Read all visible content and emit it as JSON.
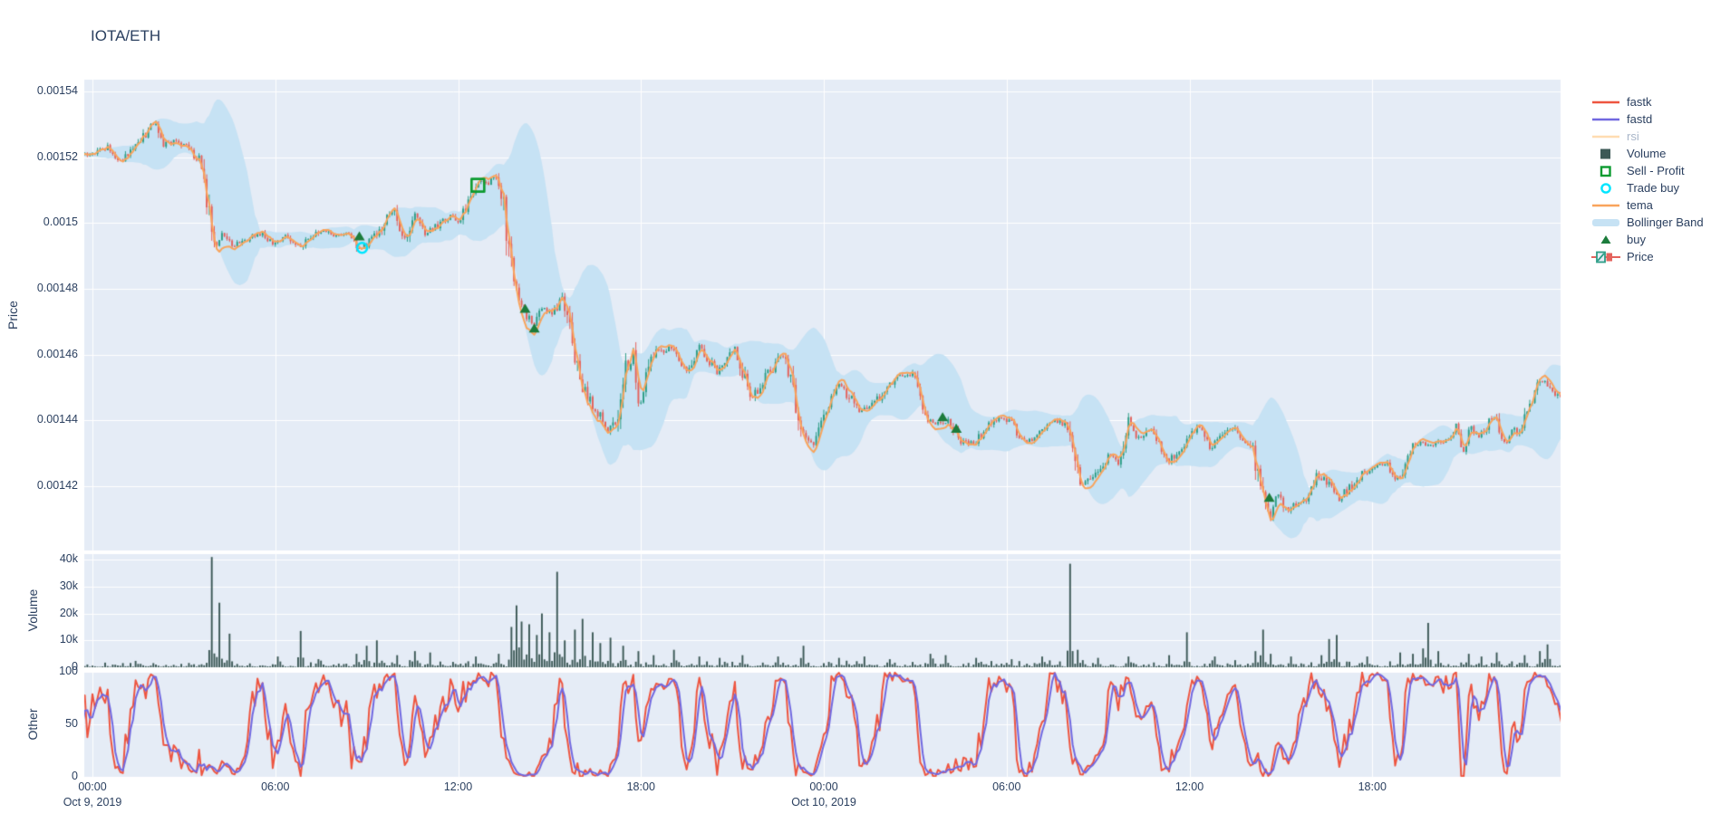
{
  "title": "IOTA/ETH",
  "colors": {
    "text": "#2a3f5f",
    "plot_bg": "#e5ecf6",
    "grid": "#ffffff",
    "candle_up": "#2d9e87",
    "candle_down": "#e4625c",
    "tema": "#f9a45c",
    "bollinger": "#c6e2f4",
    "volume_bar": "#3c5956",
    "fastk": "#ee5540",
    "fastd": "#7168e0",
    "rsi_muted": "#ffdcb2",
    "buy": "#1c7c3c",
    "sell_profit": "#0c9b30",
    "trade_buy": "#00e5ff"
  },
  "legend": {
    "items": [
      {
        "id": "fastk",
        "label": "fastk",
        "type": "line",
        "color": "#ee5540",
        "muted": false
      },
      {
        "id": "fastd",
        "label": "fastd",
        "type": "line",
        "color": "#7168e0",
        "muted": false
      },
      {
        "id": "rsi",
        "label": "rsi",
        "type": "line",
        "color": "#ffdcb2",
        "muted": true
      },
      {
        "id": "volume",
        "label": "Volume",
        "type": "square",
        "color": "#3c5956",
        "muted": false
      },
      {
        "id": "sell-profit",
        "label": "Sell - Profit",
        "type": "open-square",
        "color": "#0c9b30",
        "muted": false
      },
      {
        "id": "trade-buy",
        "label": "Trade buy",
        "type": "open-circle",
        "color": "#00e5ff",
        "muted": false
      },
      {
        "id": "tema",
        "label": "tema",
        "type": "line",
        "color": "#f9a45c",
        "muted": false
      },
      {
        "id": "bollinger-band",
        "label": "Bollinger Band",
        "type": "band",
        "color": "#c6e2f4",
        "muted": false
      },
      {
        "id": "buy",
        "label": "buy",
        "type": "triangle",
        "color": "#1c7c3c",
        "muted": false
      },
      {
        "id": "price",
        "label": "Price",
        "type": "candle",
        "color": "#2d9e87",
        "color2": "#e4625c",
        "muted": false
      }
    ]
  },
  "axes": {
    "price": {
      "title": "Price",
      "ticks": [
        {
          "v": 0.00154,
          "label": "0.00154"
        },
        {
          "v": 0.00152,
          "label": "0.00152"
        },
        {
          "v": 0.0015,
          "label": "0.0015"
        },
        {
          "v": 0.00148,
          "label": "0.00148"
        },
        {
          "v": 0.00146,
          "label": "0.00146"
        },
        {
          "v": 0.00144,
          "label": "0.00144"
        },
        {
          "v": 0.00142,
          "label": "0.00142"
        }
      ],
      "range": [
        0.0014005,
        0.0015436
      ]
    },
    "volume": {
      "title": "Volume",
      "ticks": [
        {
          "v": 0,
          "label": "0"
        },
        {
          "v": 10000,
          "label": "10k"
        },
        {
          "v": 20000,
          "label": "20k"
        },
        {
          "v": 30000,
          "label": "30k"
        },
        {
          "v": 40000,
          "label": "40k"
        }
      ],
      "range": [
        0,
        42750
      ]
    },
    "other": {
      "title": "Other",
      "ticks": [
        {
          "v": 0,
          "label": "0"
        },
        {
          "v": 50,
          "label": "50"
        },
        {
          "v": 100,
          "label": "100"
        }
      ],
      "range": [
        0,
        100
      ]
    },
    "x": {
      "ticks": [
        {
          "t": 0,
          "label": "00:00",
          "date": "Oct 9, 2019"
        },
        {
          "t": 6,
          "label": "06:00"
        },
        {
          "t": 12,
          "label": "12:00"
        },
        {
          "t": 18,
          "label": "18:00"
        },
        {
          "t": 24,
          "label": "00:00",
          "date": "Oct 10, 2019"
        },
        {
          "t": 30,
          "label": "06:00"
        },
        {
          "t": 36,
          "label": "12:00"
        },
        {
          "t": 42,
          "label": "18:00"
        }
      ],
      "range_hours": [
        0,
        48.25
      ]
    }
  },
  "chart_data": {
    "type": "candlestick-multi-panel",
    "title": "IOTA/ETH",
    "pair": "IOTA/ETH",
    "panels": [
      "Price",
      "Volume",
      "Other"
    ],
    "series": [
      "fastk",
      "fastd",
      "rsi(hidden)",
      "Volume",
      "Sell - Profit",
      "Trade buy",
      "tema",
      "Bollinger Band",
      "buy",
      "Price"
    ],
    "candle_interval_minutes": 5,
    "gen": {
      "t_start": -2,
      "t_end": 48.25,
      "noise_seed": 11
    },
    "price_waypoints": [
      [
        0,
        0.001521
      ],
      [
        0.5,
        0.001523
      ],
      [
        0.9,
        0.0015185
      ],
      [
        1.3,
        0.0015225
      ],
      [
        1.7,
        0.0015265
      ],
      [
        2.05,
        0.001531
      ],
      [
        2.35,
        0.001524
      ],
      [
        2.8,
        0.001525
      ],
      [
        3.2,
        0.001522
      ],
      [
        3.6,
        0.001518
      ],
      [
        3.85,
        0.001503
      ],
      [
        4.05,
        0.001494
      ],
      [
        4.3,
        0.001497
      ],
      [
        4.6,
        0.001493
      ],
      [
        5.0,
        0.001495
      ],
      [
        5.5,
        0.0014968
      ],
      [
        5.9,
        0.001494
      ],
      [
        6.3,
        0.001496
      ],
      [
        6.8,
        0.001493
      ],
      [
        7.2,
        0.0014965
      ],
      [
        7.6,
        0.001498
      ],
      [
        8.0,
        0.001496
      ],
      [
        8.4,
        0.0014968
      ],
      [
        8.8,
        0.001492
      ],
      [
        9.2,
        0.001495
      ],
      [
        9.6,
        0.0015
      ],
      [
        9.9,
        0.0015055
      ],
      [
        10.2,
        0.001494
      ],
      [
        10.6,
        0.001504
      ],
      [
        10.9,
        0.001497
      ],
      [
        11.3,
        0.001499
      ],
      [
        11.8,
        0.001503
      ],
      [
        12.05,
        0.0015
      ],
      [
        12.4,
        0.001508
      ],
      [
        12.7,
        0.001512
      ],
      [
        13.0,
        0.001512
      ],
      [
        13.2,
        0.001514
      ],
      [
        13.45,
        0.001509
      ],
      [
        13.7,
        0.001488
      ],
      [
        13.95,
        0.001479
      ],
      [
        14.2,
        0.001472
      ],
      [
        14.5,
        0.001469
      ],
      [
        14.8,
        0.001475
      ],
      [
        15.1,
        0.001472
      ],
      [
        15.4,
        0.001478
      ],
      [
        15.7,
        0.001466
      ],
      [
        16.0,
        0.001453
      ],
      [
        16.3,
        0.001446
      ],
      [
        16.6,
        0.001442
      ],
      [
        16.9,
        0.0014365
      ],
      [
        17.2,
        0.001441
      ],
      [
        17.5,
        0.001456
      ],
      [
        17.75,
        0.001459
      ],
      [
        17.95,
        0.0014445
      ],
      [
        18.4,
        0.00146
      ],
      [
        19.0,
        0.0014625
      ],
      [
        19.5,
        0.001455
      ],
      [
        19.9,
        0.0014625
      ],
      [
        20.5,
        0.0014545
      ],
      [
        21.1,
        0.001462
      ],
      [
        21.6,
        0.0014455
      ],
      [
        22.0,
        0.001452
      ],
      [
        22.7,
        0.0014605
      ],
      [
        23.0,
        0.001449
      ],
      [
        23.35,
        0.0014345
      ],
      [
        23.7,
        0.001433
      ],
      [
        24.1,
        0.0014445
      ],
      [
        24.5,
        0.001451
      ],
      [
        25.2,
        0.001443
      ],
      [
        26.0,
        0.001448
      ],
      [
        26.4,
        0.0014535
      ],
      [
        27.0,
        0.0014535
      ],
      [
        27.35,
        0.001441
      ],
      [
        27.7,
        0.001439
      ],
      [
        28.1,
        0.00144
      ],
      [
        28.5,
        0.001434
      ],
      [
        28.9,
        0.001433
      ],
      [
        29.3,
        0.001437
      ],
      [
        29.7,
        0.001441
      ],
      [
        30.1,
        0.00144
      ],
      [
        30.5,
        0.001434
      ],
      [
        30.9,
        0.001434
      ],
      [
        31.3,
        0.001439
      ],
      [
        31.7,
        0.00144
      ],
      [
        32.0,
        0.001438
      ],
      [
        32.25,
        0.001426
      ],
      [
        32.45,
        0.00142
      ],
      [
        32.8,
        0.001423
      ],
      [
        33.1,
        0.0014255
      ],
      [
        33.4,
        0.00143
      ],
      [
        33.7,
        0.001426
      ],
      [
        34.0,
        0.00144
      ],
      [
        34.35,
        0.001434
      ],
      [
        34.8,
        0.0014375
      ],
      [
        35.3,
        0.0014272
      ],
      [
        35.8,
        0.001433
      ],
      [
        36.25,
        0.001438
      ],
      [
        36.7,
        0.0014315
      ],
      [
        37.1,
        0.001436
      ],
      [
        37.4,
        0.001438
      ],
      [
        37.65,
        0.001435
      ],
      [
        38.05,
        0.001433
      ],
      [
        38.45,
        0.0014145
      ],
      [
        38.65,
        0.0014105
      ],
      [
        38.9,
        0.001418
      ],
      [
        39.2,
        0.0014125
      ],
      [
        39.6,
        0.0014155
      ],
      [
        39.9,
        0.0014155
      ],
      [
        40.2,
        0.0014235
      ],
      [
        40.5,
        0.0014212
      ],
      [
        40.9,
        0.001416
      ],
      [
        41.3,
        0.00142
      ],
      [
        41.7,
        0.001424
      ],
      [
        42.1,
        0.0014265
      ],
      [
        42.5,
        0.0014265
      ],
      [
        42.9,
        0.0014215
      ],
      [
        43.3,
        0.001433
      ],
      [
        43.6,
        0.001433
      ],
      [
        44.0,
        0.001433
      ],
      [
        44.4,
        0.001434
      ],
      [
        44.75,
        0.001438
      ],
      [
        45.0,
        0.0014305
      ],
      [
        45.25,
        0.001438
      ],
      [
        45.5,
        0.0014345
      ],
      [
        46.0,
        0.0014415
      ],
      [
        46.4,
        0.0014325
      ],
      [
        46.6,
        0.0014375
      ],
      [
        46.75,
        0.001436
      ],
      [
        47.1,
        0.001444
      ],
      [
        47.4,
        0.00145
      ],
      [
        47.65,
        0.0014525
      ],
      [
        47.9,
        0.001449
      ],
      [
        48.25,
        0.001447
      ]
    ],
    "volume_spikes": [
      [
        3.9,
        41000
      ],
      [
        4.2,
        24000
      ],
      [
        4.5,
        12500
      ],
      [
        6.1,
        4000
      ],
      [
        6.8,
        13500
      ],
      [
        7.4,
        3000
      ],
      [
        8.7,
        5000
      ],
      [
        9.0,
        8000
      ],
      [
        9.35,
        10000
      ],
      [
        10.0,
        4500
      ],
      [
        10.6,
        6000
      ],
      [
        11.1,
        5500
      ],
      [
        12.6,
        4000
      ],
      [
        13.3,
        5000
      ],
      [
        13.75,
        15000
      ],
      [
        13.95,
        23000
      ],
      [
        14.1,
        17000
      ],
      [
        14.3,
        16000
      ],
      [
        14.55,
        12000
      ],
      [
        14.75,
        20000
      ],
      [
        15.0,
        13000
      ],
      [
        15.25,
        35500
      ],
      [
        15.5,
        10000
      ],
      [
        15.8,
        14000
      ],
      [
        16.05,
        18000
      ],
      [
        16.4,
        13000
      ],
      [
        16.7,
        9000
      ],
      [
        17.0,
        11000
      ],
      [
        17.4,
        8000
      ],
      [
        17.9,
        6000
      ],
      [
        18.4,
        4500
      ],
      [
        19.1,
        6500
      ],
      [
        19.9,
        4000
      ],
      [
        20.6,
        3500
      ],
      [
        21.3,
        4500
      ],
      [
        22.5,
        4000
      ],
      [
        23.3,
        8000
      ],
      [
        24.5,
        3500
      ],
      [
        25.3,
        4000
      ],
      [
        26.2,
        3000
      ],
      [
        27.5,
        5000
      ],
      [
        28.0,
        4500
      ],
      [
        29.0,
        3500
      ],
      [
        30.2,
        3000
      ],
      [
        31.2,
        4000
      ],
      [
        32.1,
        38500
      ],
      [
        32.35,
        6500
      ],
      [
        33.0,
        3500
      ],
      [
        34.0,
        4000
      ],
      [
        35.3,
        4500
      ],
      [
        35.9,
        13000
      ],
      [
        36.8,
        4000
      ],
      [
        38.2,
        6000
      ],
      [
        38.45,
        14000
      ],
      [
        38.7,
        5000
      ],
      [
        39.3,
        4000
      ],
      [
        40.3,
        4500
      ],
      [
        40.6,
        10500
      ],
      [
        40.85,
        12000
      ],
      [
        41.8,
        4000
      ],
      [
        42.9,
        5500
      ],
      [
        43.3,
        5000
      ],
      [
        43.65,
        7000
      ],
      [
        43.85,
        16500
      ],
      [
        44.2,
        6000
      ],
      [
        45.2,
        5000
      ],
      [
        45.6,
        4000
      ],
      [
        46.1,
        5500
      ],
      [
        47.0,
        4500
      ],
      [
        47.5,
        6000
      ],
      [
        47.75,
        8500
      ]
    ],
    "markers": {
      "buy": [
        {
          "t": 8.76,
          "price": 0.001496
        },
        {
          "t": 14.2,
          "price": 0.001474
        },
        {
          "t": 14.5,
          "price": 0.001468
        },
        {
          "t": 27.9,
          "price": 0.001441
        },
        {
          "t": 28.35,
          "price": 0.0014375
        },
        {
          "t": 38.62,
          "price": 0.0014165
        }
      ],
      "trade_buy": [
        {
          "t": 8.85,
          "price": 0.0014925
        }
      ],
      "sell_profit": [
        {
          "t": 12.65,
          "price": 0.0015115
        }
      ]
    },
    "indicators": {
      "bollinger": {
        "window": 20,
        "stddev": 2
      },
      "tema": {
        "period": 9
      },
      "fastk": {
        "period": 14
      },
      "fastd": {
        "smooth": 3
      }
    }
  }
}
